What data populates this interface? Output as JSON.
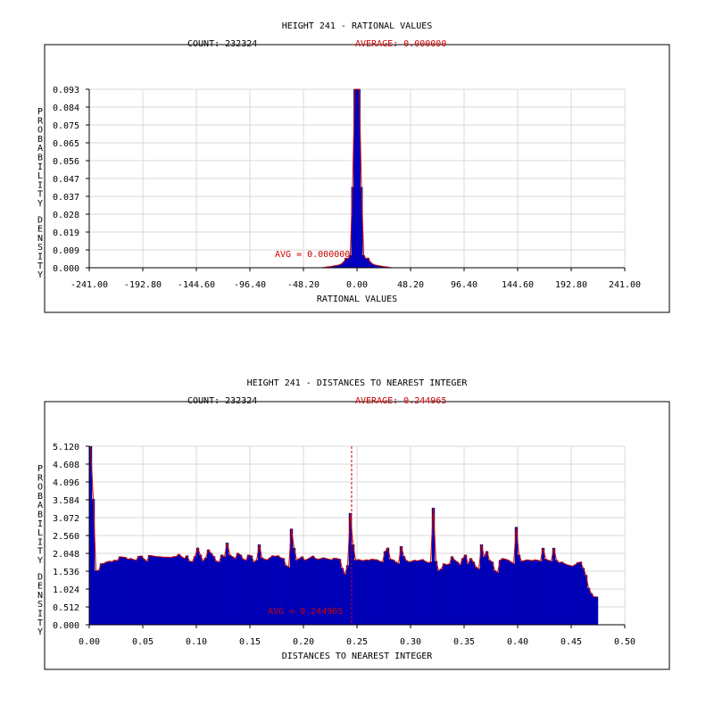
{
  "colors": {
    "bar": "#0000cc",
    "curve": "#cc0000",
    "avg_line": "#cc0000",
    "grid": "#d8d8d8"
  },
  "chart_data": [
    {
      "type": "bar",
      "title": "HEIGHT 241 - RATIONAL VALUES",
      "count_label": "COUNT: 232324",
      "average_label": "AVERAGE: 0.000000",
      "avg_annotation": "AVG = 0.000000",
      "avg_value": 0.0,
      "xlabel": "RATIONAL VALUES",
      "ylabel": "PROBABILITY DENSITY",
      "xlim": [
        -241.0,
        241.0
      ],
      "ylim": [
        0.0,
        0.093
      ],
      "x_ticks": [
        "-241.00",
        "-192.80",
        "-144.60",
        "-96.40",
        "-48.20",
        "0.00",
        "48.20",
        "96.40",
        "144.60",
        "192.80",
        "241.00"
      ],
      "y_ticks": [
        "0.000",
        "0.009",
        "0.019",
        "0.028",
        "0.037",
        "0.047",
        "0.056",
        "0.065",
        "0.075",
        "0.084",
        "0.093"
      ],
      "grid": true,
      "bins": {
        "x": [
          -28,
          -26,
          -24,
          -22,
          -20,
          -18,
          -16,
          -14,
          -12,
          -10,
          -8,
          -6,
          -4,
          -2,
          0,
          2,
          4,
          6,
          8,
          10,
          12,
          14,
          16,
          18,
          20,
          22,
          24,
          26,
          28
        ],
        "values": [
          0.0003,
          0.0005,
          0.0006,
          0.0008,
          0.001,
          0.0012,
          0.0015,
          0.002,
          0.003,
          0.005,
          0.0048,
          0.0065,
          0.042,
          0.093,
          0.093,
          0.093,
          0.042,
          0.0065,
          0.0048,
          0.005,
          0.003,
          0.002,
          0.0015,
          0.0012,
          0.001,
          0.0008,
          0.0006,
          0.0005,
          0.0003
        ]
      }
    },
    {
      "type": "bar",
      "title": "HEIGHT 241 - DISTANCES TO NEAREST INTEGER",
      "count_label": "COUNT: 232324",
      "average_label": "AVERAGE: 0.244965",
      "avg_annotation": "AVG = 0.244965",
      "avg_value": 0.244965,
      "xlabel": "DISTANCES TO NEAREST INTEGER",
      "ylabel": "PROBABILITY DENSITY",
      "xlim": [
        0.0,
        0.5
      ],
      "ylim": [
        0.0,
        5.12
      ],
      "x_ticks": [
        "0.00",
        "0.05",
        "0.10",
        "0.15",
        "0.20",
        "0.25",
        "0.30",
        "0.35",
        "0.40",
        "0.45",
        "0.50"
      ],
      "y_ticks": [
        "0.000",
        "0.512",
        "1.024",
        "1.536",
        "2.048",
        "2.560",
        "3.072",
        "3.584",
        "4.096",
        "4.608",
        "5.120"
      ],
      "grid": true,
      "bin_width": 0.0025,
      "values": [
        5.12,
        3.6,
        1.55,
        1.56,
        1.75,
        1.76,
        1.8,
        1.82,
        1.81,
        1.85,
        1.84,
        1.95,
        1.94,
        1.93,
        1.88,
        1.9,
        1.87,
        1.85,
        1.96,
        1.97,
        1.88,
        1.82,
        1.99,
        1.98,
        1.96,
        1.95,
        1.95,
        1.94,
        1.94,
        1.94,
        1.93,
        1.95,
        1.96,
        2.02,
        1.95,
        1.9,
        1.98,
        1.82,
        1.81,
        1.96,
        2.2,
        2.0,
        1.83,
        1.92,
        2.15,
        2.05,
        1.96,
        1.82,
        1.8,
        2.0,
        1.95,
        2.35,
        2.0,
        1.95,
        1.9,
        2.05,
        2.0,
        1.88,
        1.85,
        2.0,
        1.98,
        1.8,
        1.85,
        2.3,
        1.92,
        1.88,
        1.86,
        1.92,
        1.98,
        1.96,
        1.98,
        1.92,
        1.9,
        1.7,
        1.65,
        2.75,
        2.2,
        1.85,
        1.9,
        1.95,
        1.85,
        1.88,
        1.92,
        1.97,
        1.9,
        1.88,
        1.9,
        1.92,
        1.9,
        1.88,
        1.86,
        1.91,
        1.9,
        1.88,
        1.62,
        1.45,
        1.7,
        3.2,
        2.3,
        1.85,
        1.87,
        1.85,
        1.84,
        1.86,
        1.85,
        1.88,
        1.87,
        1.86,
        1.82,
        1.8,
        2.1,
        2.2,
        1.88,
        1.86,
        1.8,
        1.75,
        2.25,
        1.96,
        1.84,
        1.8,
        1.82,
        1.85,
        1.83,
        1.85,
        1.87,
        1.82,
        1.78,
        1.8,
        3.35,
        1.82,
        1.55,
        1.6,
        1.75,
        1.72,
        1.74,
        1.95,
        1.85,
        1.8,
        1.72,
        1.9,
        2.0,
        1.75,
        1.9,
        1.8,
        1.65,
        1.6,
        2.3,
        1.95,
        2.1,
        1.85,
        1.8,
        1.55,
        1.5,
        1.85,
        1.9,
        1.88,
        1.85,
        1.8,
        1.75,
        2.8,
        2.0,
        1.82,
        1.84,
        1.86,
        1.85,
        1.84,
        1.86,
        1.85,
        1.82,
        2.2,
        1.88,
        1.85,
        1.82,
        2.2,
        1.85,
        1.78,
        1.8,
        1.75,
        1.72,
        1.7,
        1.68,
        1.72,
        1.78,
        1.8,
        1.62,
        1.42,
        1.05,
        0.9,
        0.8,
        0.8
      ]
    }
  ]
}
